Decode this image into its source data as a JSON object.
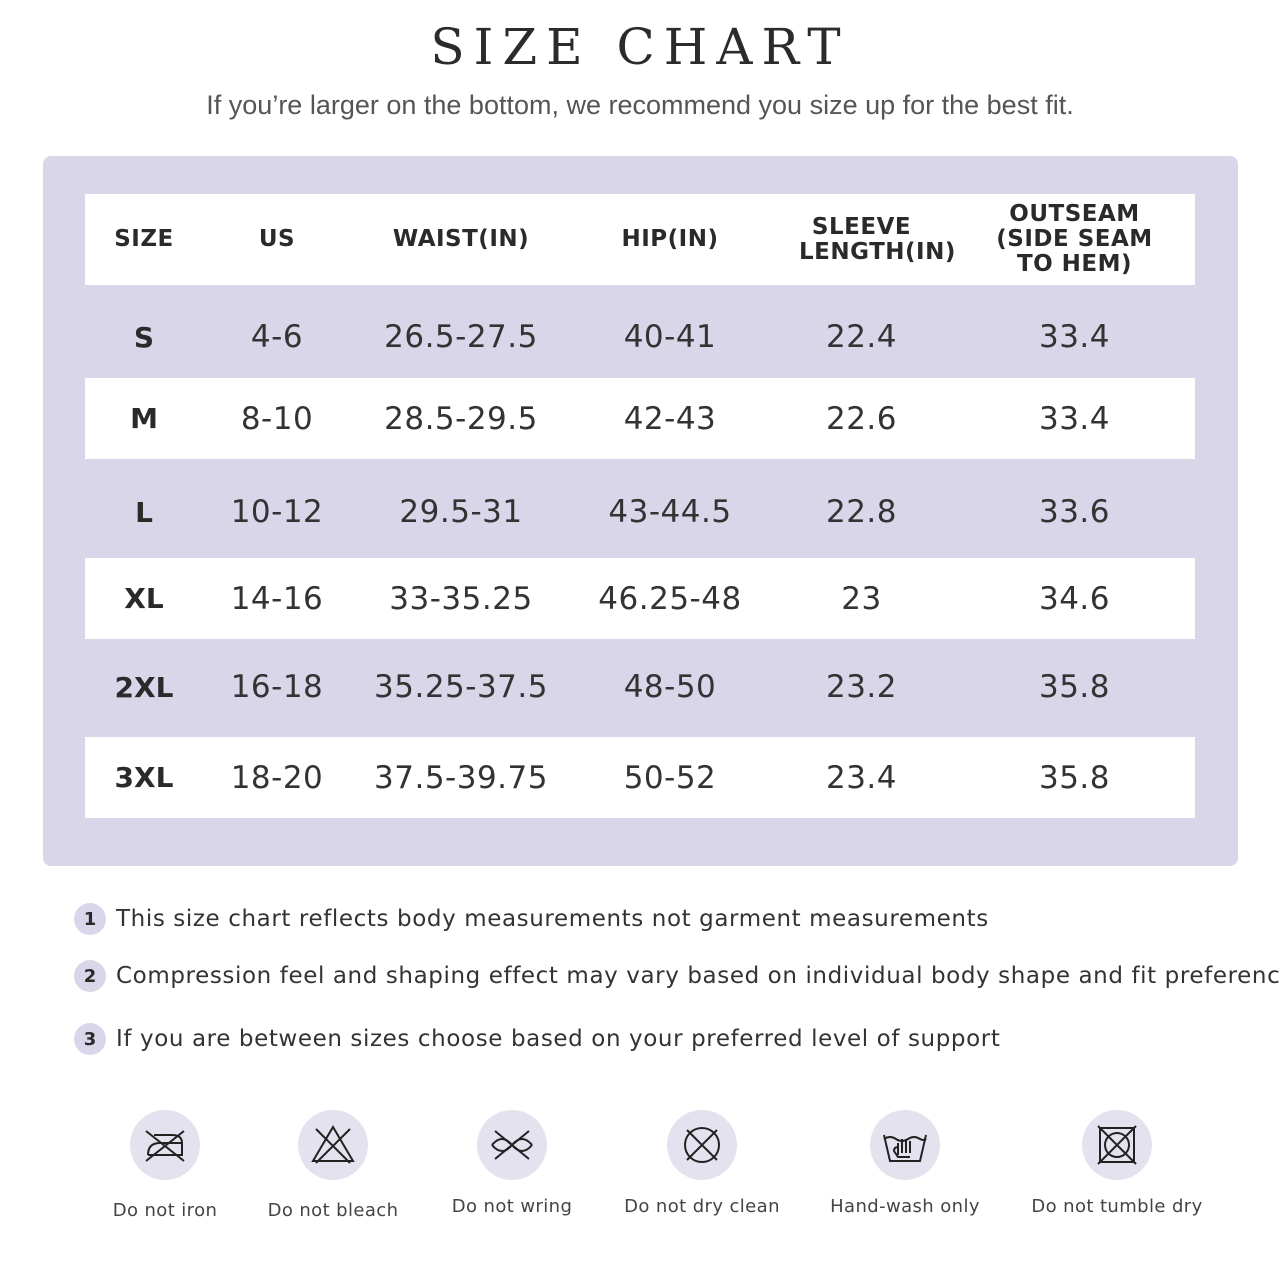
{
  "header": {
    "title": "SIZE CHART",
    "subtitle": "If you’re larger on the bottom, we recommend you size up for the best fit."
  },
  "colors": {
    "page_bg": "#ffffff",
    "panel_bg": "#d9d6ea",
    "badge_bg": "#d9d6ea",
    "icon_bg": "#e4e2ee"
  },
  "table": {
    "columns": [
      "SIZE",
      "US",
      "WAIST(IN)",
      "HIP(IN)",
      "SLEEVE LENGTH(IN)",
      "OUTSEAM (SIDE SEAM TO HEM)"
    ],
    "rows": [
      [
        "S",
        "4-6",
        "26.5-27.5",
        "40-41",
        "22.4",
        "33.4"
      ],
      [
        "M",
        "8-10",
        "28.5-29.5",
        "42-43",
        "22.6",
        "33.4"
      ],
      [
        "L",
        "10-12",
        "29.5-31",
        "43-44.5",
        "22.8",
        "33.6"
      ],
      [
        "XL",
        "14-16",
        "33-35.25",
        "46.25-48",
        "23",
        "34.6"
      ],
      [
        "2XL",
        "16-18",
        "35.25-37.5",
        "48-50",
        "23.2",
        "35.8"
      ],
      [
        "3XL",
        "18-20",
        "37.5-39.75",
        "50-52",
        "23.4",
        "35.8"
      ]
    ]
  },
  "notes": [
    {
      "num": "1",
      "text": "This size chart reflects body measurements not garment measurements"
    },
    {
      "num": "2",
      "text": "Compression feel and shaping effect may vary based on individual body shape and fit preference"
    },
    {
      "num": "3",
      "text": "If you are between sizes choose based on your preferred level of support"
    }
  ],
  "care": [
    {
      "icon": "no-iron-icon",
      "label": "Do not iron"
    },
    {
      "icon": "no-bleach-icon",
      "label": "Do not bleach"
    },
    {
      "icon": "no-wring-icon",
      "label": "Do not wring"
    },
    {
      "icon": "no-dry-clean-icon",
      "label": "Do not dry clean"
    },
    {
      "icon": "hand-wash-icon",
      "label": "Hand-wash only"
    },
    {
      "icon": "no-tumble-dry-icon",
      "label": "Do not tumble dry"
    }
  ]
}
